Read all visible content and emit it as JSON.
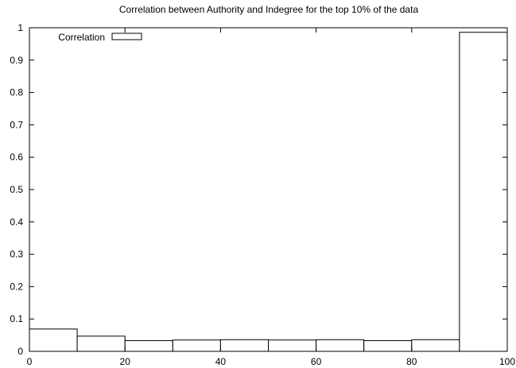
{
  "chart_data": {
    "type": "bar",
    "title": "Correlation between Authority and Indegree for the top 10% of the data",
    "xlabel": "",
    "ylabel": "",
    "xlim": [
      0,
      100
    ],
    "ylim": [
      0,
      1
    ],
    "xticks": [
      0,
      20,
      40,
      60,
      80,
      100
    ],
    "yticks": [
      0,
      0.1,
      0.2,
      0.3,
      0.4,
      0.5,
      0.6,
      0.7,
      0.8,
      0.9,
      1
    ],
    "grid": false,
    "legend_position": "top-left",
    "series": [
      {
        "name": "Correlation",
        "bins": [
          {
            "x0": 0,
            "x1": 10,
            "value": 0.069
          },
          {
            "x0": 10,
            "x1": 20,
            "value": 0.047
          },
          {
            "x0": 20,
            "x1": 30,
            "value": 0.033
          },
          {
            "x0": 30,
            "x1": 40,
            "value": 0.035
          },
          {
            "x0": 40,
            "x1": 50,
            "value": 0.036
          },
          {
            "x0": 50,
            "x1": 60,
            "value": 0.035
          },
          {
            "x0": 60,
            "x1": 70,
            "value": 0.036
          },
          {
            "x0": 70,
            "x1": 80,
            "value": 0.033
          },
          {
            "x0": 80,
            "x1": 90,
            "value": 0.036
          },
          {
            "x0": 90,
            "x1": 100,
            "value": 0.986
          }
        ]
      }
    ]
  }
}
